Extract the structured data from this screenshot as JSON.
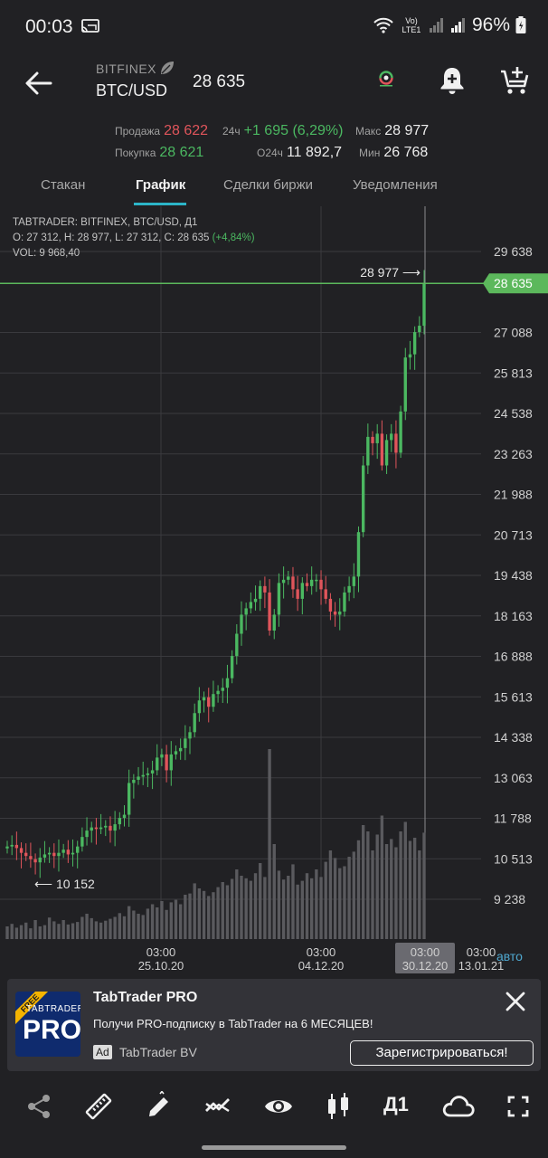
{
  "status_bar": {
    "time": "00:03",
    "network_label": "Vo) LTE1",
    "battery": "96%"
  },
  "header": {
    "exchange": "BITFINEX",
    "pair": "BTC/USD",
    "last_price": "28 635"
  },
  "stats": {
    "sell_label": "Продажа",
    "sell_value": "28 622",
    "buy_label": "Покупка",
    "buy_value": "28 621",
    "change_label": "24ч",
    "change_value": "+1 695 (6,29%)",
    "volume_label": "O24ч",
    "volume_value": "11 892,7",
    "max_label": "Макс",
    "max_value": "28 977",
    "min_label": "Мин",
    "min_value": "26 768"
  },
  "tabs": [
    {
      "label": "Стакан"
    },
    {
      "label": "График"
    },
    {
      "label": "Сделки биржи"
    },
    {
      "label": "Уведомления"
    }
  ],
  "chart": {
    "legend_line1": "TABTRADER: BITFINEX, BTC/USD, Д1",
    "legend_ohlc": "O: 27 312, H: 28 977, L: 27 312, C: 28 635",
    "legend_change": "(+4,84%)",
    "legend_vol": "VOL: 9 968,40",
    "high_marker": "28 977 ⟶",
    "low_marker": "⟵ 10 152",
    "current_price_tag": "28 635",
    "auto_label": "авто",
    "colors": {
      "up": "#4bb861",
      "down": "#e0555b",
      "volume": "#5a5a5e",
      "price_line": "#5cb85c"
    }
  },
  "chart_data": {
    "type": "candlestick",
    "title": "TABTRADER: BITFINEX, BTC/USD, Д1",
    "y_ticks": [
      "29 638",
      "28 635",
      "27 088",
      "25 813",
      "24 538",
      "23 263",
      "21 988",
      "20 713",
      "19 438",
      "18 163",
      "16 888",
      "15 613",
      "14 338",
      "13 063",
      "11 788",
      "10 513",
      "9 238"
    ],
    "x_ticks": [
      {
        "time": "03:00",
        "date": "25.10.20"
      },
      {
        "time": "03:00",
        "date": "04.12.20"
      },
      {
        "time": "03:00",
        "date": "30.12.20",
        "highlight": true
      },
      {
        "time": "03:00",
        "date": "13.01.21"
      }
    ],
    "ylim": [
      8500,
      30200
    ],
    "grid": true,
    "current_price": 28635,
    "period_high": 28977,
    "period_low": 10152,
    "close_series": [
      10900,
      10950,
      10850,
      10700,
      10600,
      10500,
      10400,
      10550,
      10650,
      10700,
      10600,
      10700,
      10800,
      10650,
      10700,
      10900,
      11200,
      11400,
      11500,
      11450,
      11500,
      11550,
      11400,
      11600,
      11800,
      11900,
      12900,
      13000,
      13100,
      13150,
      13200,
      13300,
      13700,
      13800,
      13300,
      13800,
      13900,
      14000,
      14300,
      14500,
      15100,
      15500,
      15600,
      15300,
      15700,
      15800,
      15900,
      16200,
      16900,
      17600,
      18200,
      18400,
      18600,
      18700,
      19100,
      18900,
      17700,
      18200,
      19200,
      19300,
      19400,
      19000,
      18700,
      19200,
      19100,
      19300,
      19300,
      19000,
      18700,
      18300,
      18200,
      18300,
      18900,
      19100,
      19400,
      20800,
      22900,
      23800,
      23600,
      23900,
      22900,
      23700,
      23900,
      23300,
      24600,
      26300,
      26400,
      27100,
      27300,
      28635
    ],
    "volume_series": [
      20,
      24,
      18,
      22,
      26,
      17,
      30,
      20,
      22,
      34,
      28,
      24,
      30,
      23,
      25,
      27,
      35,
      40,
      33,
      28,
      26,
      29,
      32,
      35,
      41,
      36,
      52,
      45,
      40,
      38,
      48,
      55,
      50,
      60,
      46,
      58,
      62,
      55,
      70,
      72,
      88,
      80,
      76,
      68,
      74,
      82,
      90,
      85,
      95,
      110,
      100,
      96,
      92,
      104,
      120,
      98,
      300,
      150,
      108,
      94,
      100,
      118,
      86,
      92,
      104,
      96,
      110,
      98,
      122,
      140,
      128,
      112,
      115,
      130,
      138,
      156,
      180,
      170,
      140,
      165,
      195,
      150,
      158,
      145,
      170,
      185,
      155,
      160,
      140,
      168
    ]
  },
  "ad": {
    "free_badge": "FREE",
    "logo_brand": "TABTRADER",
    "logo_text": "PRO",
    "title": "TabTrader PRO",
    "description": "Получи PRO-подписку в TabTrader на 6 МЕСЯЦЕВ!",
    "badge": "Ad",
    "advertiser": "TabTrader BV",
    "cta": "Зарегистрироваться!"
  },
  "toolbar": {
    "timeframe": "Д1"
  }
}
